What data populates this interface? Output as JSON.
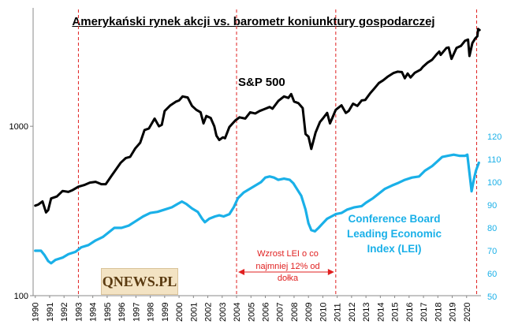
{
  "title": "Amerykański rynek akcji vs. barometr koniunktury gospodarczej",
  "logo_text": "QNEWS.PL",
  "chart_data": {
    "type": "line",
    "title": "Amerykański rynek akcji vs. barometr koniunktury gospodarczej",
    "x_ticks": [
      "1990",
      "1991",
      "1992",
      "1993",
      "1994",
      "1995",
      "1996",
      "1997",
      "1998",
      "1999",
      "2000",
      "2001",
      "2002",
      "2003",
      "2004",
      "2005",
      "2006",
      "2007",
      "2008",
      "2009",
      "2010",
      "2011",
      "2012",
      "2013",
      "2014",
      "2015",
      "2016",
      "2017",
      "2018",
      "2019",
      "2020"
    ],
    "y_left": {
      "scale": "log",
      "range": [
        100,
        5000
      ],
      "ticks": [
        "100",
        "1000"
      ]
    },
    "y_right": {
      "range": [
        50,
        130
      ],
      "ticks": [
        "50",
        "60",
        "70",
        "80",
        "90",
        "100",
        "110",
        "120"
      ],
      "color": "#1ab0e8"
    },
    "annotations": {
      "sp_label": "S&P 500",
      "lei_label": [
        "Conference Board",
        "Leading Economic",
        "Index (LEI)"
      ],
      "range_note": [
        "Wzrost LEI  o co",
        "najmniej 12% od",
        "dołka"
      ]
    },
    "red_dashed_lines_x": [
      1993.0,
      2004.0,
      2010.9,
      2020.7
    ],
    "arrow_range_x": [
      2004.0,
      2010.9
    ],
    "series": [
      {
        "name": "S&P 500",
        "axis": "left",
        "color": "#000000",
        "points": [
          [
            1990.0,
            340
          ],
          [
            1990.2,
            345
          ],
          [
            1990.5,
            360
          ],
          [
            1990.75,
            310
          ],
          [
            1990.9,
            320
          ],
          [
            1991.1,
            375
          ],
          [
            1991.5,
            385
          ],
          [
            1991.9,
            415
          ],
          [
            1992.3,
            410
          ],
          [
            1992.6,
            420
          ],
          [
            1993.0,
            440
          ],
          [
            1993.4,
            450
          ],
          [
            1993.8,
            465
          ],
          [
            1994.2,
            470
          ],
          [
            1994.6,
            455
          ],
          [
            1994.9,
            455
          ],
          [
            1995.3,
            510
          ],
          [
            1995.7,
            570
          ],
          [
            1995.95,
            610
          ],
          [
            1996.3,
            650
          ],
          [
            1996.6,
            660
          ],
          [
            1996.95,
            740
          ],
          [
            1997.3,
            800
          ],
          [
            1997.6,
            950
          ],
          [
            1997.9,
            970
          ],
          [
            1998.3,
            1110
          ],
          [
            1998.6,
            1000
          ],
          [
            1998.8,
            1020
          ],
          [
            1999.0,
            1230
          ],
          [
            1999.4,
            1330
          ],
          [
            1999.8,
            1400
          ],
          [
            2000.0,
            1420
          ],
          [
            2000.25,
            1500
          ],
          [
            2000.6,
            1480
          ],
          [
            2000.9,
            1320
          ],
          [
            2001.2,
            1250
          ],
          [
            2001.5,
            1210
          ],
          [
            2001.7,
            1040
          ],
          [
            2001.9,
            1150
          ],
          [
            2002.2,
            1120
          ],
          [
            2002.45,
            1000
          ],
          [
            2002.6,
            880
          ],
          [
            2002.8,
            830
          ],
          [
            2003.05,
            860
          ],
          [
            2003.2,
            850
          ],
          [
            2003.5,
            990
          ],
          [
            2003.9,
            1080
          ],
          [
            2004.2,
            1130
          ],
          [
            2004.6,
            1110
          ],
          [
            2004.95,
            1210
          ],
          [
            2005.3,
            1190
          ],
          [
            2005.6,
            1230
          ],
          [
            2005.9,
            1260
          ],
          [
            2006.3,
            1300
          ],
          [
            2006.5,
            1270
          ],
          [
            2006.9,
            1410
          ],
          [
            2007.3,
            1500
          ],
          [
            2007.6,
            1470
          ],
          [
            2007.8,
            1550
          ],
          [
            2008.0,
            1400
          ],
          [
            2008.3,
            1370
          ],
          [
            2008.6,
            1280
          ],
          [
            2008.8,
            900
          ],
          [
            2009.0,
            870
          ],
          [
            2009.2,
            735
          ],
          [
            2009.5,
            920
          ],
          [
            2009.8,
            1060
          ],
          [
            2010.0,
            1110
          ],
          [
            2010.3,
            1200
          ],
          [
            2010.5,
            1040
          ],
          [
            2010.7,
            1140
          ],
          [
            2010.9,
            1250
          ],
          [
            2011.3,
            1330
          ],
          [
            2011.6,
            1200
          ],
          [
            2011.8,
            1230
          ],
          [
            2012.1,
            1360
          ],
          [
            2012.4,
            1320
          ],
          [
            2012.7,
            1420
          ],
          [
            2012.95,
            1430
          ],
          [
            2013.3,
            1570
          ],
          [
            2013.6,
            1680
          ],
          [
            2013.9,
            1800
          ],
          [
            2014.2,
            1870
          ],
          [
            2014.5,
            1960
          ],
          [
            2014.9,
            2060
          ],
          [
            2015.2,
            2100
          ],
          [
            2015.5,
            2090
          ],
          [
            2015.7,
            1920
          ],
          [
            2015.9,
            2050
          ],
          [
            2016.1,
            1940
          ],
          [
            2016.4,
            2070
          ],
          [
            2016.8,
            2160
          ],
          [
            2016.95,
            2240
          ],
          [
            2017.3,
            2380
          ],
          [
            2017.6,
            2470
          ],
          [
            2017.9,
            2650
          ],
          [
            2018.1,
            2760
          ],
          [
            2018.2,
            2640
          ],
          [
            2018.6,
            2900
          ],
          [
            2018.75,
            2920
          ],
          [
            2018.95,
            2500
          ],
          [
            2019.3,
            2900
          ],
          [
            2019.6,
            2980
          ],
          [
            2019.9,
            3200
          ],
          [
            2020.1,
            3250
          ],
          [
            2020.2,
            2600
          ],
          [
            2020.4,
            3100
          ],
          [
            2020.6,
            3300
          ],
          [
            2020.75,
            3400
          ],
          [
            2020.8,
            3750
          ],
          [
            2020.9,
            3700
          ]
        ]
      },
      {
        "name": "Conference Board Leading Economic Index (LEI)",
        "axis": "right",
        "color": "#1ab0e8",
        "points": [
          [
            1990.0,
            70
          ],
          [
            1990.4,
            70
          ],
          [
            1990.65,
            68
          ],
          [
            1990.9,
            65.5
          ],
          [
            1991.1,
            64.5
          ],
          [
            1991.4,
            66
          ],
          [
            1991.9,
            67
          ],
          [
            1992.3,
            68.5
          ],
          [
            1992.8,
            69.5
          ],
          [
            1993.2,
            71.5
          ],
          [
            1993.7,
            72.5
          ],
          [
            1994.2,
            74.5
          ],
          [
            1994.7,
            76
          ],
          [
            1995.0,
            77.5
          ],
          [
            1995.5,
            80
          ],
          [
            1996.0,
            80
          ],
          [
            1996.5,
            81
          ],
          [
            1997.0,
            83
          ],
          [
            1997.5,
            85
          ],
          [
            1998.0,
            86.5
          ],
          [
            1998.5,
            87
          ],
          [
            1999.0,
            88
          ],
          [
            1999.5,
            89
          ],
          [
            1999.9,
            90.5
          ],
          [
            2000.2,
            91.5
          ],
          [
            2000.5,
            90.5
          ],
          [
            2000.9,
            88.5
          ],
          [
            2001.3,
            87
          ],
          [
            2001.6,
            84
          ],
          [
            2001.8,
            82.5
          ],
          [
            2002.1,
            84
          ],
          [
            2002.5,
            85
          ],
          [
            2002.8,
            85.5
          ],
          [
            2003.1,
            85
          ],
          [
            2003.5,
            86
          ],
          [
            2003.8,
            89
          ],
          [
            2004.1,
            93
          ],
          [
            2004.5,
            95.5
          ],
          [
            2004.9,
            97
          ],
          [
            2005.3,
            98.5
          ],
          [
            2005.7,
            100
          ],
          [
            2006.0,
            102
          ],
          [
            2006.3,
            102.5
          ],
          [
            2006.6,
            102
          ],
          [
            2006.9,
            101
          ],
          [
            2007.3,
            101.5
          ],
          [
            2007.7,
            101
          ],
          [
            2007.95,
            99.5
          ],
          [
            2008.2,
            97
          ],
          [
            2008.5,
            94
          ],
          [
            2008.8,
            88
          ],
          [
            2009.0,
            82
          ],
          [
            2009.2,
            79
          ],
          [
            2009.45,
            78.5
          ],
          [
            2009.7,
            80
          ],
          [
            2010.0,
            82
          ],
          [
            2010.3,
            84
          ],
          [
            2010.6,
            85
          ],
          [
            2010.9,
            86
          ],
          [
            2011.3,
            86.5
          ],
          [
            2011.7,
            88
          ],
          [
            2012.2,
            89
          ],
          [
            2012.7,
            89.5
          ],
          [
            2013.0,
            91
          ],
          [
            2013.5,
            93
          ],
          [
            2013.9,
            95
          ],
          [
            2014.3,
            97
          ],
          [
            2014.8,
            98.5
          ],
          [
            2015.2,
            99.5
          ],
          [
            2015.7,
            101
          ],
          [
            2016.2,
            102
          ],
          [
            2016.7,
            102.5
          ],
          [
            2017.1,
            105
          ],
          [
            2017.6,
            107
          ],
          [
            2017.95,
            109
          ],
          [
            2018.3,
            111
          ],
          [
            2018.7,
            111.5
          ],
          [
            2019.1,
            112
          ],
          [
            2019.5,
            111.5
          ],
          [
            2019.9,
            111.5
          ],
          [
            2020.05,
            112
          ],
          [
            2020.2,
            104
          ],
          [
            2020.35,
            96
          ],
          [
            2020.5,
            101
          ],
          [
            2020.65,
            105
          ],
          [
            2020.85,
            108.5
          ]
        ]
      }
    ]
  }
}
